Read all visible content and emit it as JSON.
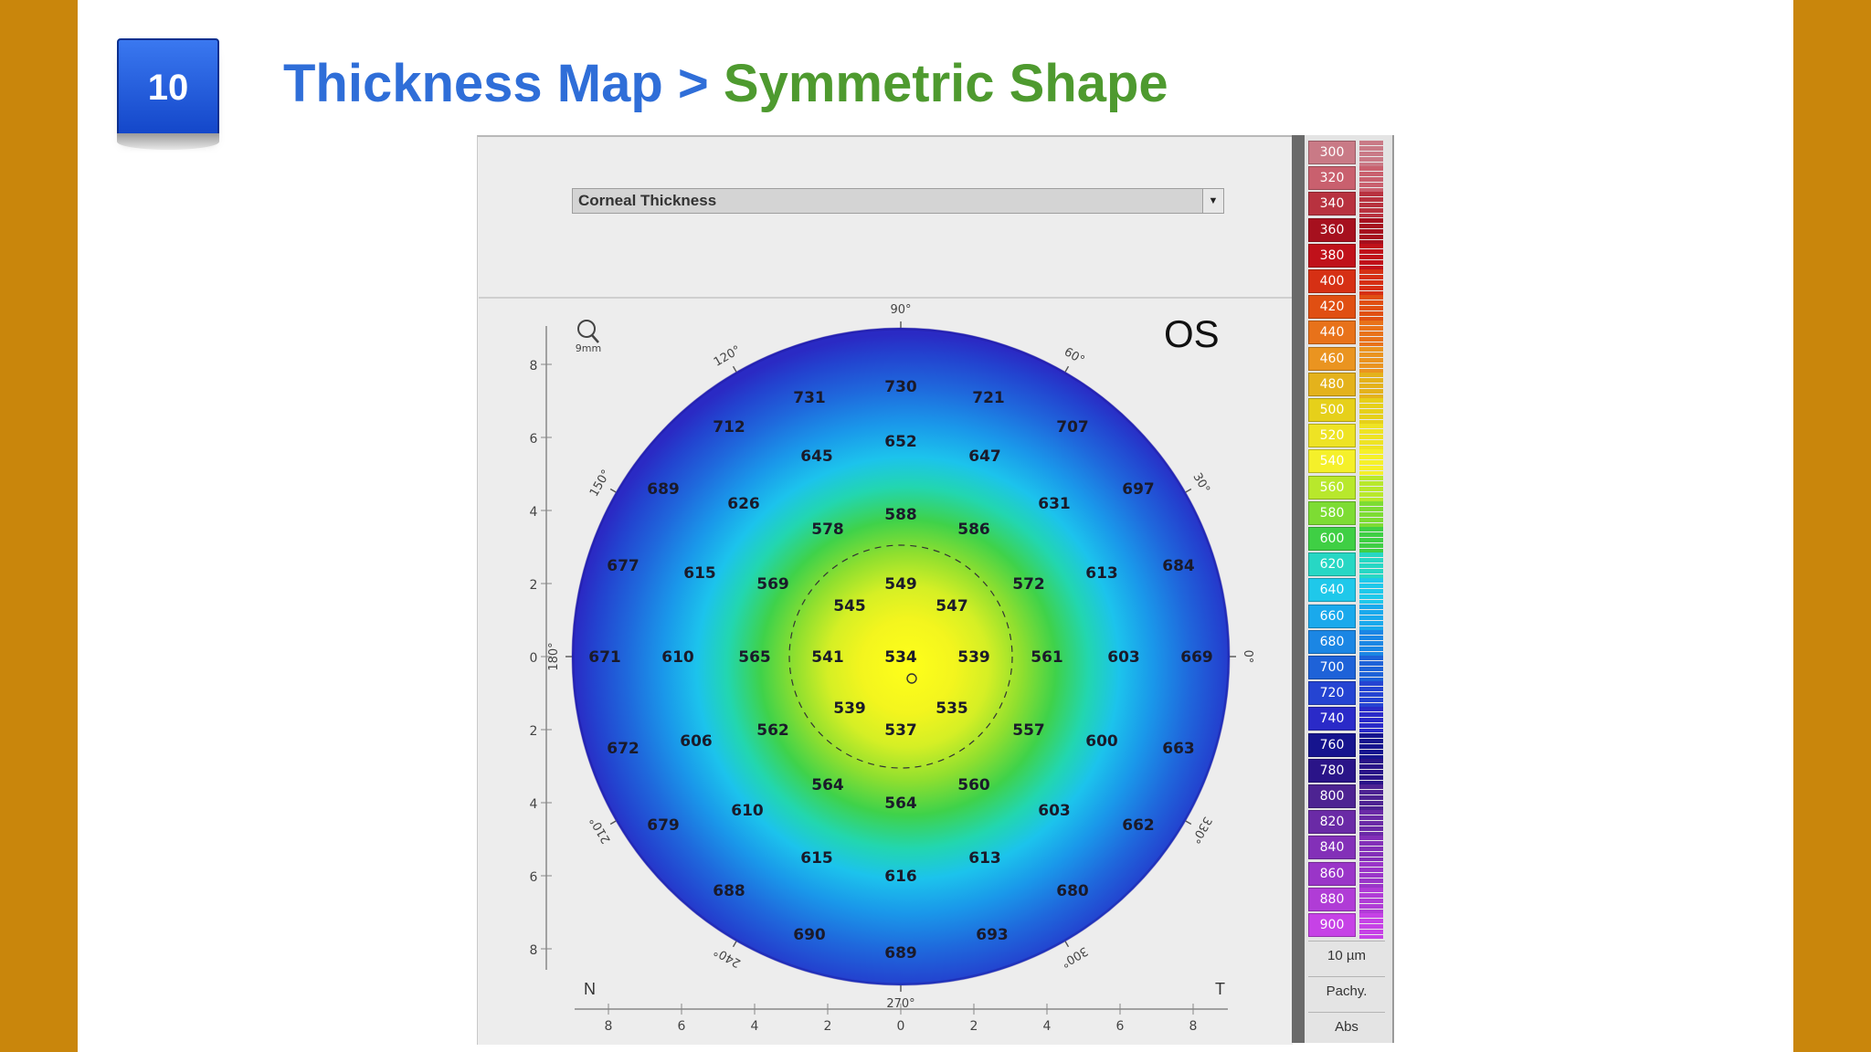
{
  "slide": {
    "number": "10",
    "title_part1": "Thickness Map > ",
    "title_part2": "Symmetric Shape"
  },
  "dropdown": {
    "selected": "Corneal Thickness"
  },
  "map": {
    "eye_label": "OS",
    "zoom_label": "9mm",
    "nasal_label": "N",
    "temporal_label": "T",
    "angle_labels": [
      "90°",
      "60°",
      "30°",
      "0°",
      "330°",
      "300°",
      "270°",
      "240°",
      "210°",
      "180°",
      "150°",
      "120°"
    ],
    "y_ticks": [
      "8",
      "6",
      "4",
      "2",
      "0",
      "2",
      "4",
      "6",
      "8"
    ],
    "x_ticks": [
      "8",
      "6",
      "4",
      "2",
      "0",
      "2",
      "4",
      "6",
      "8"
    ],
    "values": [
      {
        "v": "730",
        "x": 0,
        "y": 7.4
      },
      {
        "v": "731",
        "x": -2.5,
        "y": 7.1
      },
      {
        "v": "721",
        "x": 2.4,
        "y": 7.1
      },
      {
        "v": "712",
        "x": -4.7,
        "y": 6.3
      },
      {
        "v": "707",
        "x": 4.7,
        "y": 6.3
      },
      {
        "v": "652",
        "x": 0,
        "y": 5.9
      },
      {
        "v": "645",
        "x": -2.3,
        "y": 5.5
      },
      {
        "v": "647",
        "x": 2.3,
        "y": 5.5
      },
      {
        "v": "689",
        "x": -6.5,
        "y": 4.6
      },
      {
        "v": "697",
        "x": 6.5,
        "y": 4.6
      },
      {
        "v": "626",
        "x": -4.3,
        "y": 4.2
      },
      {
        "v": "631",
        "x": 4.2,
        "y": 4.2
      },
      {
        "v": "588",
        "x": 0,
        "y": 3.9
      },
      {
        "v": "578",
        "x": -2.0,
        "y": 3.5
      },
      {
        "v": "586",
        "x": 2.0,
        "y": 3.5
      },
      {
        "v": "677",
        "x": -7.6,
        "y": 2.5
      },
      {
        "v": "684",
        "x": 7.6,
        "y": 2.5
      },
      {
        "v": "615",
        "x": -5.5,
        "y": 2.3
      },
      {
        "v": "613",
        "x": 5.5,
        "y": 2.3
      },
      {
        "v": "569",
        "x": -3.5,
        "y": 2.0
      },
      {
        "v": "549",
        "x": 0,
        "y": 2.0
      },
      {
        "v": "572",
        "x": 3.5,
        "y": 2.0
      },
      {
        "v": "545",
        "x": -1.4,
        "y": 1.4
      },
      {
        "v": "547",
        "x": 1.4,
        "y": 1.4
      },
      {
        "v": "671",
        "x": -8.1,
        "y": 0
      },
      {
        "v": "610",
        "x": -6.1,
        "y": 0
      },
      {
        "v": "565",
        "x": -4.0,
        "y": 0
      },
      {
        "v": "541",
        "x": -2.0,
        "y": 0
      },
      {
        "v": "534",
        "x": 0,
        "y": 0
      },
      {
        "v": "539",
        "x": 2.0,
        "y": 0
      },
      {
        "v": "561",
        "x": 4.0,
        "y": 0
      },
      {
        "v": "603",
        "x": 6.1,
        "y": 0
      },
      {
        "v": "669",
        "x": 8.1,
        "y": 0
      },
      {
        "v": "539",
        "x": -1.4,
        "y": -1.4
      },
      {
        "v": "535",
        "x": 1.4,
        "y": -1.4
      },
      {
        "v": "562",
        "x": -3.5,
        "y": -2.0
      },
      {
        "v": "537",
        "x": 0,
        "y": -2.0
      },
      {
        "v": "557",
        "x": 3.5,
        "y": -2.0
      },
      {
        "v": "672",
        "x": -7.6,
        "y": -2.5
      },
      {
        "v": "606",
        "x": -5.6,
        "y": -2.3
      },
      {
        "v": "600",
        "x": 5.5,
        "y": -2.3
      },
      {
        "v": "663",
        "x": 7.6,
        "y": -2.5
      },
      {
        "v": "564",
        "x": -2.0,
        "y": -3.5
      },
      {
        "v": "560",
        "x": 2.0,
        "y": -3.5
      },
      {
        "v": "564",
        "x": 0,
        "y": -4.0
      },
      {
        "v": "610",
        "x": -4.2,
        "y": -4.2
      },
      {
        "v": "603",
        "x": 4.2,
        "y": -4.2
      },
      {
        "v": "679",
        "x": -6.5,
        "y": -4.6
      },
      {
        "v": "662",
        "x": 6.5,
        "y": -4.6
      },
      {
        "v": "615",
        "x": -2.3,
        "y": -5.5
      },
      {
        "v": "613",
        "x": 2.3,
        "y": -5.5
      },
      {
        "v": "616",
        "x": 0,
        "y": -6.0
      },
      {
        "v": "688",
        "x": -4.7,
        "y": -6.4
      },
      {
        "v": "680",
        "x": 4.7,
        "y": -6.4
      },
      {
        "v": "690",
        "x": -2.5,
        "y": -7.6
      },
      {
        "v": "693",
        "x": 2.5,
        "y": -7.6
      },
      {
        "v": "689",
        "x": 0,
        "y": -8.1
      }
    ]
  },
  "scale": {
    "swatches": [
      {
        "label": "300",
        "color": "#c97a86"
      },
      {
        "label": "320",
        "color": "#c9606e"
      },
      {
        "label": "340",
        "color": "#b8323f"
      },
      {
        "label": "360",
        "color": "#a6101e"
      },
      {
        "label": "380",
        "color": "#c0111a"
      },
      {
        "label": "400",
        "color": "#d63014"
      },
      {
        "label": "420",
        "color": "#e04f12"
      },
      {
        "label": "440",
        "color": "#e8721a"
      },
      {
        "label": "460",
        "color": "#ea9420"
      },
      {
        "label": "480",
        "color": "#e4b21c"
      },
      {
        "label": "500",
        "color": "#e6d01a"
      },
      {
        "label": "520",
        "color": "#eee324"
      },
      {
        "label": "540",
        "color": "#f5f02a"
      },
      {
        "label": "560",
        "color": "#b8e82c"
      },
      {
        "label": "580",
        "color": "#7ddc33"
      },
      {
        "label": "600",
        "color": "#3fcf44"
      },
      {
        "label": "620",
        "color": "#27d7c4"
      },
      {
        "label": "640",
        "color": "#1fc8ea"
      },
      {
        "label": "660",
        "color": "#1aa9ec"
      },
      {
        "label": "680",
        "color": "#1b86e4"
      },
      {
        "label": "700",
        "color": "#1e62d8"
      },
      {
        "label": "720",
        "color": "#2544d2"
      },
      {
        "label": "740",
        "color": "#2a2ac8"
      },
      {
        "label": "760",
        "color": "#16148e"
      },
      {
        "label": "780",
        "color": "#2a1488"
      },
      {
        "label": "800",
        "color": "#4d2392"
      },
      {
        "label": "820",
        "color": "#6a2aa6"
      },
      {
        "label": "840",
        "color": "#8330b8"
      },
      {
        "label": "860",
        "color": "#9a35c8"
      },
      {
        "label": "880",
        "color": "#b03cd6"
      },
      {
        "label": "900",
        "color": "#c642e6"
      }
    ],
    "step_label": "10 µm",
    "mode_label": "Pachy.",
    "abs_label": "Abs"
  }
}
